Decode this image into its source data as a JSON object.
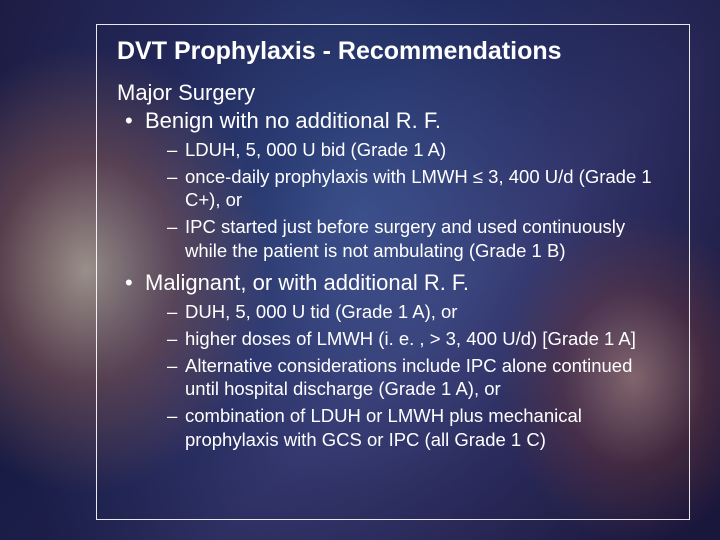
{
  "slide": {
    "title": "DVT Prophylaxis - Recommendations",
    "section1": {
      "heading": "Major Surgery",
      "bullet": "Benign with no additional R. F.",
      "items": [
        "LDUH, 5, 000 U bid (Grade 1 A)",
        "once-daily prophylaxis with LMWH ≤ 3, 400 U/d (Grade 1 C+), or",
        "IPC started just before surgery and used continuously while the patient is not ambulating (Grade 1 B)"
      ]
    },
    "section2": {
      "bullet": "Malignant, or with additional R. F.",
      "items": [
        "DUH, 5, 000 U tid (Grade 1 A), or",
        "higher doses of LMWH (i. e. , > 3, 400 U/d) [Grade 1 A]",
        "Alternative considerations include IPC alone continued until hospital discharge (Grade 1 A), or",
        "combination of LDUH or LMWH plus mechanical prophylaxis with GCS or IPC (all Grade 1 C)"
      ]
    },
    "colors": {
      "text": "#ffffff",
      "border": "#ffffff"
    }
  }
}
